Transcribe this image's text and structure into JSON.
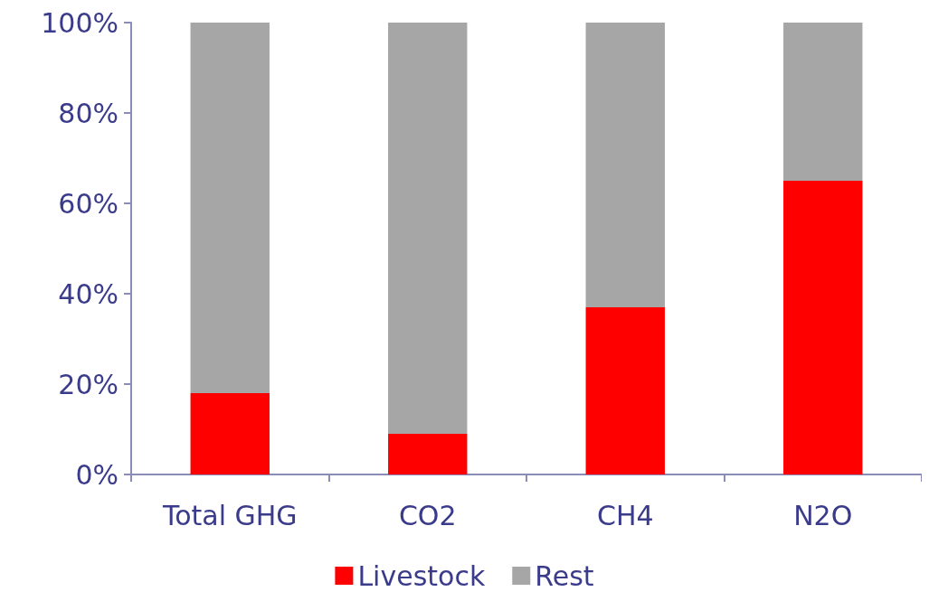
{
  "chart_data": {
    "type": "bar",
    "stacked": true,
    "categories": [
      "Total GHG",
      "CO2",
      "CH4",
      "N2O"
    ],
    "series": [
      {
        "name": "Livestock",
        "color": "#ff0000",
        "values": [
          18,
          9,
          37,
          65
        ]
      },
      {
        "name": "Rest",
        "color": "#a6a6a6",
        "values": [
          82,
          91,
          63,
          35
        ]
      }
    ],
    "ylim": [
      0,
      100
    ],
    "yticks": [
      {
        "value": 0,
        "label": "0%"
      },
      {
        "value": 20,
        "label": "20%"
      },
      {
        "value": 40,
        "label": "40%"
      },
      {
        "value": 60,
        "label": "60%"
      },
      {
        "value": 80,
        "label": "80%"
      },
      {
        "value": 100,
        "label": "100%"
      }
    ],
    "grid": false,
    "legend": "bottom"
  }
}
